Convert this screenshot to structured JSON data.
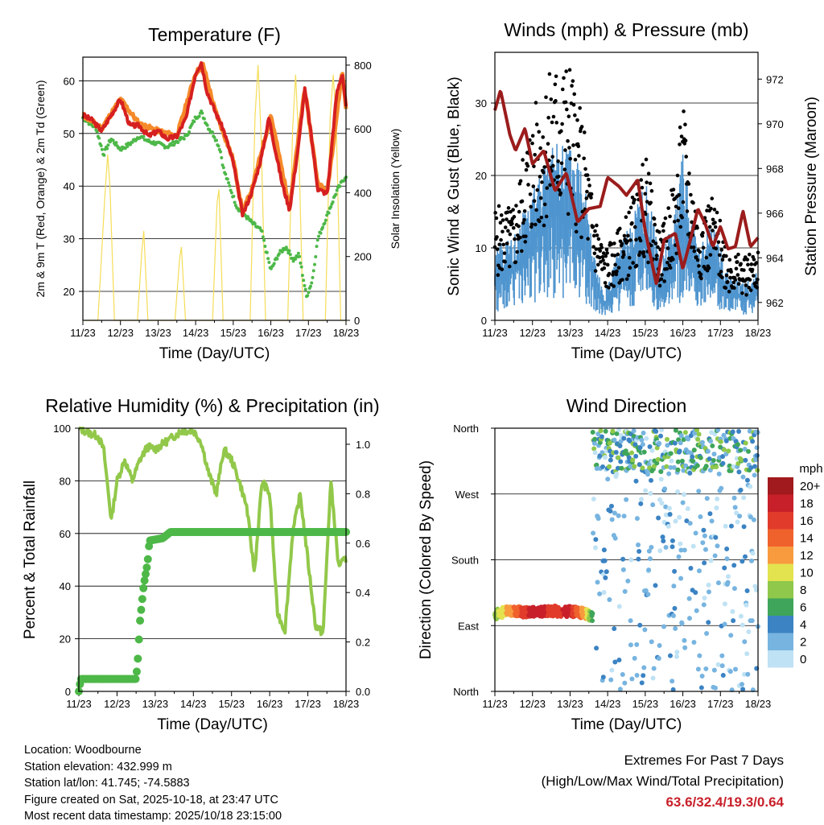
{
  "xaxis": {
    "ticks": [
      "11/23",
      "12/23",
      "13/23",
      "14/23",
      "15/23",
      "16/23",
      "17/23",
      "18/23"
    ],
    "label": "Time (Day/UTC)"
  },
  "chart_data": [
    {
      "type": "line",
      "title": "Temperature (F)",
      "ylabel": "2m & 9m T (Red, Orange) & 2m Td (Green)",
      "y2label": "Solar Insolation (Yellow)",
      "xlim": [
        0,
        7
      ],
      "ylim": [
        14.5,
        64.5
      ],
      "y2lim": [
        0,
        825
      ],
      "yticks": [
        20,
        30,
        40,
        50,
        60
      ],
      "y2ticks": [
        0,
        200,
        400,
        600,
        800
      ],
      "series": [
        {
          "name": "2m T",
          "color": "#d62020",
          "x": [
            0,
            0.25,
            0.5,
            0.75,
            1.0,
            1.25,
            1.5,
            1.75,
            2.0,
            2.25,
            2.5,
            2.75,
            3.0,
            3.15,
            3.3,
            3.5,
            3.75,
            4.0,
            4.25,
            4.5,
            4.75,
            4.95,
            5.1,
            5.3,
            5.5,
            5.75,
            5.9,
            6.05,
            6.25,
            6.5,
            6.75,
            6.9,
            7.0
          ],
          "y": [
            53.5,
            52.5,
            50.5,
            53.5,
            56.5,
            51.5,
            51.5,
            49.5,
            50.5,
            49,
            49.5,
            53,
            61.5,
            63.5,
            58,
            54.5,
            50.5,
            44.5,
            34.5,
            39,
            45.5,
            53,
            47.5,
            40.5,
            35.5,
            48.5,
            58.5,
            51,
            39.5,
            38.5,
            57.5,
            61.5,
            55
          ]
        },
        {
          "name": "9m T",
          "color": "#f58a2a",
          "x": [
            0,
            0.5,
            1.0,
            1.5,
            2.0,
            2.5,
            3.0,
            3.2,
            3.5,
            4.0,
            4.25,
            4.5,
            5.0,
            5.5,
            5.9,
            6.25,
            6.5,
            6.9,
            7.0
          ],
          "y": [
            53.5,
            51,
            56.5,
            51.8,
            50.5,
            49.5,
            61.5,
            63,
            54.8,
            45,
            35,
            39.5,
            53.5,
            36,
            58.5,
            40.5,
            39,
            61.8,
            55
          ]
        },
        {
          "name": "2m Td",
          "color": "#4db848",
          "x": [
            0,
            0.35,
            0.55,
            0.75,
            1.0,
            1.25,
            1.5,
            1.75,
            2.0,
            2.25,
            2.5,
            2.75,
            3.0,
            3.15,
            3.35,
            3.5,
            3.65,
            3.75,
            3.9,
            4.1,
            4.25,
            4.5,
            4.75,
            5.0,
            5.2,
            5.4,
            5.6,
            5.75,
            5.95,
            6.1,
            6.25,
            6.5,
            6.75,
            7.0
          ],
          "y": [
            53,
            51,
            46,
            49,
            47,
            48,
            49.5,
            48.5,
            48,
            47.5,
            48.5,
            49.5,
            53,
            54,
            51,
            49.5,
            47,
            43,
            40,
            36,
            35,
            33,
            31.5,
            24,
            27,
            28.5,
            26,
            27,
            19,
            22,
            30,
            34.5,
            39,
            42
          ]
        },
        {
          "name": "Solar Insolation",
          "color": "#f5dd58",
          "axis": "y2",
          "x": [
            0,
            0.4,
            0.58,
            0.66,
            0.72,
            0.84,
            1.0,
            1.45,
            1.57,
            1.62,
            1.73,
            2.0,
            2.45,
            2.57,
            2.62,
            2.73,
            3.0,
            3.45,
            3.57,
            3.62,
            3.73,
            4.0,
            4.45,
            4.58,
            4.66,
            4.74,
            4.86,
            5.0,
            5.45,
            5.58,
            5.66,
            5.74,
            5.86,
            6.0,
            6.45,
            6.58,
            6.66,
            6.74,
            6.86,
            7.0
          ],
          "y": [
            0,
            0,
            380,
            520,
            420,
            0,
            0,
            0,
            220,
            280,
            0,
            0,
            0,
            190,
            230,
            0,
            0,
            0,
            370,
            410,
            0,
            0,
            0,
            640,
            800,
            580,
            0,
            0,
            0,
            600,
            770,
            560,
            0,
            0,
            0,
            640,
            770,
            620,
            0,
            0
          ]
        }
      ]
    },
    {
      "type": "scatter",
      "title": "Winds (mph) & Pressure (mb)",
      "ylabel": "Sonic Wind & Gust (Blue, Black)",
      "y2label": "Station Pressure (Maroon)",
      "xlim": [
        0,
        7
      ],
      "ylim": [
        0,
        37
      ],
      "y2lim": [
        961.2,
        973.2
      ],
      "yticks": [
        0,
        10,
        20,
        30
      ],
      "y2ticks": [
        962,
        964,
        966,
        968,
        970,
        972
      ],
      "series": [
        {
          "name": "Sonic Wind",
          "color": "#4f95cf",
          "x": [
            0,
            0.5,
            0.9,
            1.2,
            1.6,
            2.0,
            2.4,
            2.6,
            2.9,
            3.2,
            3.6,
            4.0,
            4.4,
            4.8,
            5.0,
            5.4,
            5.8,
            6.2,
            6.6,
            7.0
          ],
          "y": [
            6,
            7,
            10,
            12,
            15,
            14,
            12,
            6,
            2,
            5,
            8,
            12,
            5,
            9,
            14,
            6,
            8,
            4,
            3,
            4
          ]
        },
        {
          "name": "Gust",
          "color": "#000000",
          "x": [
            0,
            0.5,
            0.9,
            1.2,
            1.6,
            2.0,
            2.4,
            2.6,
            2.9,
            3.2,
            3.6,
            4.0,
            4.4,
            4.8,
            5.0,
            5.4,
            5.8,
            6.2,
            6.6,
            7.0
          ],
          "y": [
            11,
            11,
            19,
            22,
            25,
            25,
            18,
            12,
            7,
            8,
            11,
            16,
            8,
            14,
            21,
            10,
            12,
            7,
            6,
            7
          ]
        },
        {
          "name": "Station Pressure",
          "color": "#9b1c1c",
          "axis": "y2",
          "x": [
            0,
            0.15,
            0.4,
            0.55,
            0.8,
            1.0,
            1.3,
            1.6,
            1.9,
            2.2,
            2.5,
            2.8,
            3.0,
            3.3,
            3.5,
            3.8,
            4.0,
            4.3,
            4.5,
            4.8,
            5.0,
            5.2,
            5.4,
            5.6,
            5.8,
            6.0,
            6.2,
            6.4,
            6.6,
            6.8,
            7.0
          ],
          "y": [
            970.6,
            971.5,
            969.5,
            968.8,
            969.8,
            968.2,
            968.8,
            967.0,
            967.8,
            965.6,
            966.2,
            966.3,
            967.6,
            967.2,
            966.8,
            967.5,
            965.2,
            962.8,
            964.8,
            965.1,
            963.5,
            964.8,
            966.2,
            965.5,
            964.5,
            965.4,
            964.4,
            964.5,
            966.1,
            964.5,
            964.9
          ]
        }
      ]
    },
    {
      "type": "line",
      "title": "Relative Humidity (%) & Precipitation (in)",
      "ylabel": "Percent & Total Rainfall",
      "xlim": [
        0,
        7
      ],
      "ylim": [
        0,
        100
      ],
      "y2lim": [
        0,
        1.065
      ],
      "yticks": [
        0,
        20,
        40,
        60,
        80,
        100
      ],
      "y2ticks": [
        0.0,
        0.2,
        0.4,
        0.6,
        0.8,
        1.0
      ],
      "series": [
        {
          "name": "Relative Humidity",
          "color": "#92c84a",
          "x": [
            0,
            0.3,
            0.5,
            0.65,
            0.85,
            1.0,
            1.2,
            1.4,
            1.6,
            1.8,
            2.0,
            2.3,
            2.5,
            2.7,
            3.0,
            3.2,
            3.4,
            3.6,
            3.8,
            4.0,
            4.2,
            4.4,
            4.6,
            4.8,
            5.0,
            5.2,
            5.4,
            5.6,
            5.8,
            6.0,
            6.2,
            6.4,
            6.6,
            6.8,
            7.0
          ],
          "y": [
            100,
            98,
            97,
            92,
            65,
            80,
            88,
            80,
            88,
            93,
            92,
            95,
            97,
            99,
            99,
            95,
            83,
            75,
            92,
            88,
            80,
            70,
            45,
            80,
            75,
            30,
            23,
            60,
            75,
            50,
            25,
            22,
            80,
            48,
            50
          ]
        },
        {
          "name": "Total Precipitation",
          "color": "#4db848",
          "axis": "y2",
          "x": [
            0,
            0.05,
            1.3,
            1.5,
            1.55,
            1.6,
            1.7,
            1.8,
            1.85,
            2.2,
            2.4,
            2.5,
            7.0
          ],
          "y": [
            0,
            0.05,
            0.05,
            0.05,
            0.14,
            0.28,
            0.43,
            0.52,
            0.61,
            0.62,
            0.645,
            0.645,
            0.645
          ]
        }
      ]
    },
    {
      "type": "scatter",
      "title": "Wind Direction",
      "ylabel": "Direction (Colored By Speed)",
      "xlim": [
        0,
        7
      ],
      "ylim": [
        "North",
        "North"
      ],
      "yticks": [
        "North",
        "East",
        "South",
        "West",
        "North"
      ],
      "series": [
        {
          "name": "Wind direction",
          "x": [
            0,
            0.2,
            0.4,
            0.6,
            0.8,
            1.0,
            1.2,
            1.4,
            1.6,
            1.8,
            2.0,
            2.2,
            2.4,
            2.6,
            3.0,
            3.4,
            3.8,
            4.2,
            4.6,
            5.0,
            5.4,
            5.8,
            6.2,
            6.6,
            7.0
          ],
          "direction_deg": [
            105,
            108,
            110,
            110,
            108,
            110,
            108,
            110,
            110,
            108,
            110,
            108,
            107,
            100,
            20,
            340,
            5,
            10,
            290,
            350,
            5,
            330,
            20,
            300,
            270
          ],
          "speed_mph": [
            8,
            10,
            12,
            14,
            16,
            18,
            18,
            17,
            16,
            17,
            18,
            14,
            12,
            6,
            3,
            4,
            5,
            8,
            4,
            6,
            8,
            5,
            3,
            2,
            3
          ]
        }
      ],
      "legend": {
        "title": "mph",
        "labels": [
          "20+",
          "18",
          "16",
          "14",
          "12",
          "10",
          "8",
          "6",
          "4",
          "2",
          "0"
        ],
        "colors": [
          "#a11a1d",
          "#c8202a",
          "#e13c2b",
          "#f0622c",
          "#f89b3f",
          "#e3e24f",
          "#8fc84a",
          "#3ea55a",
          "#3b83c3",
          "#77b4e0",
          "#bfe2f4"
        ]
      }
    }
  ],
  "footer": {
    "location": "Location: Woodbourne",
    "elevation": "Station elevation: 432.999 m",
    "latlon": "Station lat/lon: 41.745; -74.5883",
    "created": "Figure created on Sat, 2025-10-18, at 23:47 UTC",
    "recent": "Most recent data timestamp: 2025/10/18 23:15:00"
  },
  "extremes": {
    "title": "Extremes For Past 7 Days",
    "subtitle": "(High/Low/Max Wind/Total Precipitation)",
    "values": "63.6/32.4/19.3/0.64"
  }
}
